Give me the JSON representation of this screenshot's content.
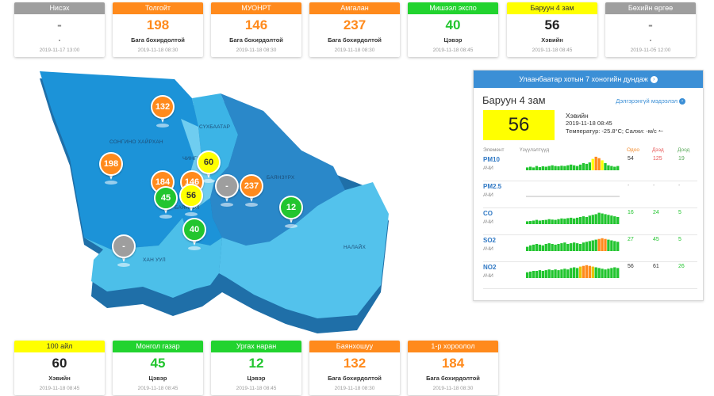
{
  "top_cards": [
    {
      "name": "Нисэх",
      "value": "-",
      "level": "-",
      "time": "2019-11-17 13:00",
      "color": "gray"
    },
    {
      "name": "Толгойт",
      "value": "198",
      "level": "Бага бохирдолтой",
      "time": "2019-11-18 08:30",
      "color": "orange"
    },
    {
      "name": "МУОНРТ",
      "value": "146",
      "level": "Бага бохирдолтой",
      "time": "2019-11-18 08:30",
      "color": "orange"
    },
    {
      "name": "Амгалан",
      "value": "237",
      "level": "Бага бохирдолтой",
      "time": "2019-11-18 08:30",
      "color": "orange"
    },
    {
      "name": "Мишээл экспо",
      "value": "40",
      "level": "Цэвэр",
      "time": "2019-11-18 08:45",
      "color": "green"
    },
    {
      "name": "Баруун 4 зам",
      "value": "56",
      "level": "Хэвийн",
      "time": "2019-11-18 08:45",
      "color": "yellow"
    },
    {
      "name": "Бөхийн өргөө",
      "value": "-",
      "level": "-",
      "time": "2019-11-05 12:00",
      "color": "gray"
    }
  ],
  "bottom_cards": [
    {
      "name": "100 айл",
      "value": "60",
      "level": "Хэвийн",
      "time": "2019-11-18 08:45",
      "color": "yellow"
    },
    {
      "name": "Монгол газар",
      "value": "45",
      "level": "Цэвэр",
      "time": "2019-11-18 08:45",
      "color": "green"
    },
    {
      "name": "Ургах наран",
      "value": "12",
      "level": "Цэвэр",
      "time": "2019-11-18 08:45",
      "color": "green"
    },
    {
      "name": "Баянхошуу",
      "value": "132",
      "level": "Бага бохирдолтой",
      "time": "2019-11-18 08:30",
      "color": "orange"
    },
    {
      "name": "1-р хороолол",
      "value": "184",
      "level": "Бага бохирдолтой",
      "time": "2019-11-18 08:30",
      "color": "orange"
    }
  ],
  "map": {
    "districts": [
      "СОНГИНО ХАЙРХАН",
      "СҮХБААТАР",
      "ЧИНГЭЛТЭЙ",
      "БАЯНЗҮРХ",
      "БАЯНГОЛ",
      "ХАН УУЛ",
      "НАЛАЙХ"
    ],
    "markers": [
      "132",
      "198",
      "184",
      "146",
      "60",
      "-",
      "237",
      "45",
      "56",
      "12",
      "40",
      "-"
    ]
  },
  "panel": {
    "title": "Улаанбаатар хотын 7 хоногийн дундаж",
    "station": "Баруун 4 зам",
    "more_link": "Дэлгэрэнгүй мэдээлэл",
    "aqi": "56",
    "level": "Хэвийн",
    "time": "2019-11-18 08:45",
    "weather": "Температур: -25.8°C; Салхи:  -м/с",
    "col_element": "Элемент",
    "col_indicator": "Үзүүлэлтүүд",
    "col_now": "Одоо",
    "col_max": "Дээд",
    "col_min": "Доод",
    "pollutants": [
      {
        "code": "PM10",
        "unit": "АЧИ",
        "now": "54",
        "max": "125",
        "min": "19",
        "bars": [
          0.2,
          0.25,
          0.2,
          0.3,
          0.22,
          0.28,
          0.25,
          0.3,
          0.35,
          0.3,
          0.28,
          0.32,
          0.3,
          0.35,
          0.4,
          0.35,
          0.3,
          0.4,
          0.5,
          0.45,
          0.55,
          0.8,
          0.95,
          0.85,
          0.7,
          0.5,
          0.35,
          0.3,
          0.25,
          0.3
        ]
      },
      {
        "code": "PM2.5",
        "unit": "АЧИ",
        "now": "-",
        "max": "-",
        "min": "-",
        "bars": []
      },
      {
        "code": "CO",
        "unit": "АЧИ",
        "now": "16",
        "max": "24",
        "min": "5",
        "bars": [
          0.2,
          0.22,
          0.25,
          0.3,
          0.25,
          0.28,
          0.3,
          0.35,
          0.32,
          0.3,
          0.35,
          0.4,
          0.38,
          0.42,
          0.45,
          0.4,
          0.45,
          0.5,
          0.55,
          0.5,
          0.6,
          0.65,
          0.7,
          0.8,
          0.75,
          0.7,
          0.65,
          0.6,
          0.55,
          0.5
        ]
      },
      {
        "code": "SO2",
        "unit": "АЧИ",
        "now": "27",
        "max": "45",
        "min": "5",
        "bars": [
          0.3,
          0.4,
          0.45,
          0.5,
          0.45,
          0.4,
          0.5,
          0.55,
          0.5,
          0.45,
          0.5,
          0.55,
          0.6,
          0.5,
          0.55,
          0.6,
          0.55,
          0.5,
          0.6,
          0.65,
          0.7,
          0.75,
          0.8,
          0.85,
          0.9,
          0.85,
          0.8,
          0.75,
          0.7,
          0.65
        ]
      },
      {
        "code": "NO2",
        "unit": "АЧИ",
        "now": "56",
        "max": "61",
        "min": "26",
        "bars": [
          0.4,
          0.45,
          0.5,
          0.5,
          0.55,
          0.5,
          0.55,
          0.6,
          0.55,
          0.6,
          0.55,
          0.6,
          0.65,
          0.6,
          0.7,
          0.75,
          0.7,
          0.8,
          0.85,
          0.9,
          0.85,
          0.8,
          0.75,
          0.7,
          0.65,
          0.6,
          0.65,
          0.7,
          0.75,
          0.7
        ]
      }
    ]
  },
  "colors": {
    "orange": "#ff8a1c",
    "green": "#22c52f",
    "yellow": "#ffff00",
    "gray": "#9e9e9e",
    "panel_header": "#3b8fd6"
  }
}
